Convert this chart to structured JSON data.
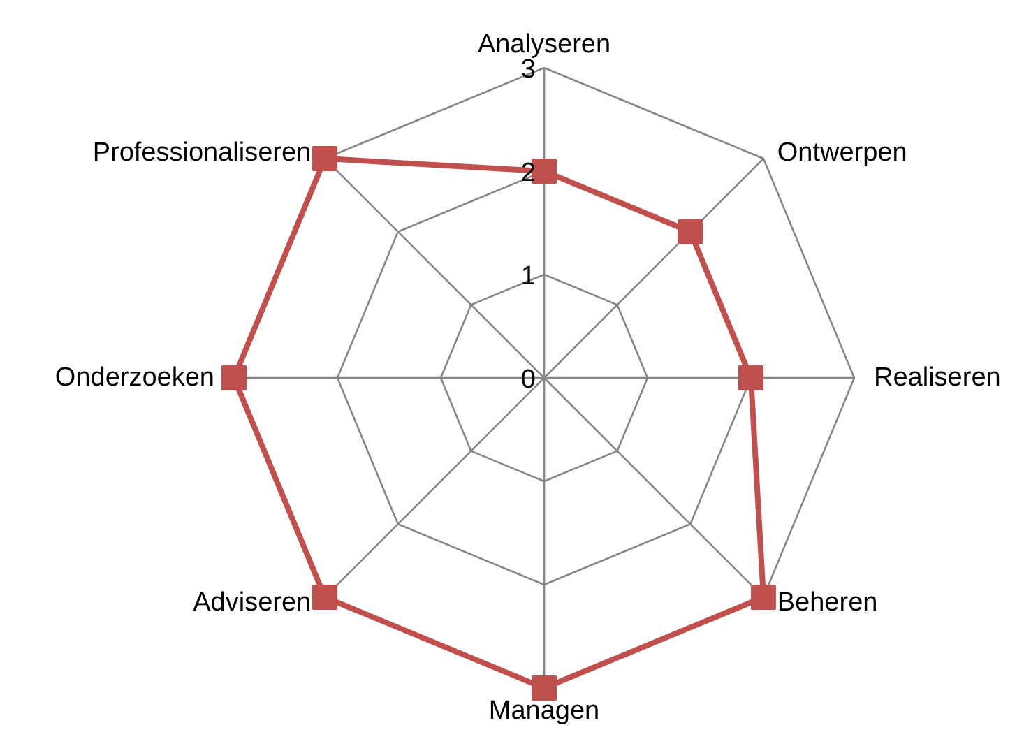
{
  "chart_data": {
    "type": "radar",
    "categories": [
      "Analyseren",
      "Ontwerpen",
      "Realiseren",
      "Beheren",
      "Managen",
      "Adviseren",
      "Onderzoeken",
      "Professionaliseren"
    ],
    "series": [
      {
        "color": "#c0504d",
        "values": [
          2,
          2,
          2,
          3,
          3,
          3,
          3,
          3
        ]
      }
    ],
    "ylim": [
      0,
      3
    ],
    "yticks": [
      0,
      1,
      2,
      3
    ],
    "grid": true,
    "marker": "square",
    "line_style": "solid"
  }
}
